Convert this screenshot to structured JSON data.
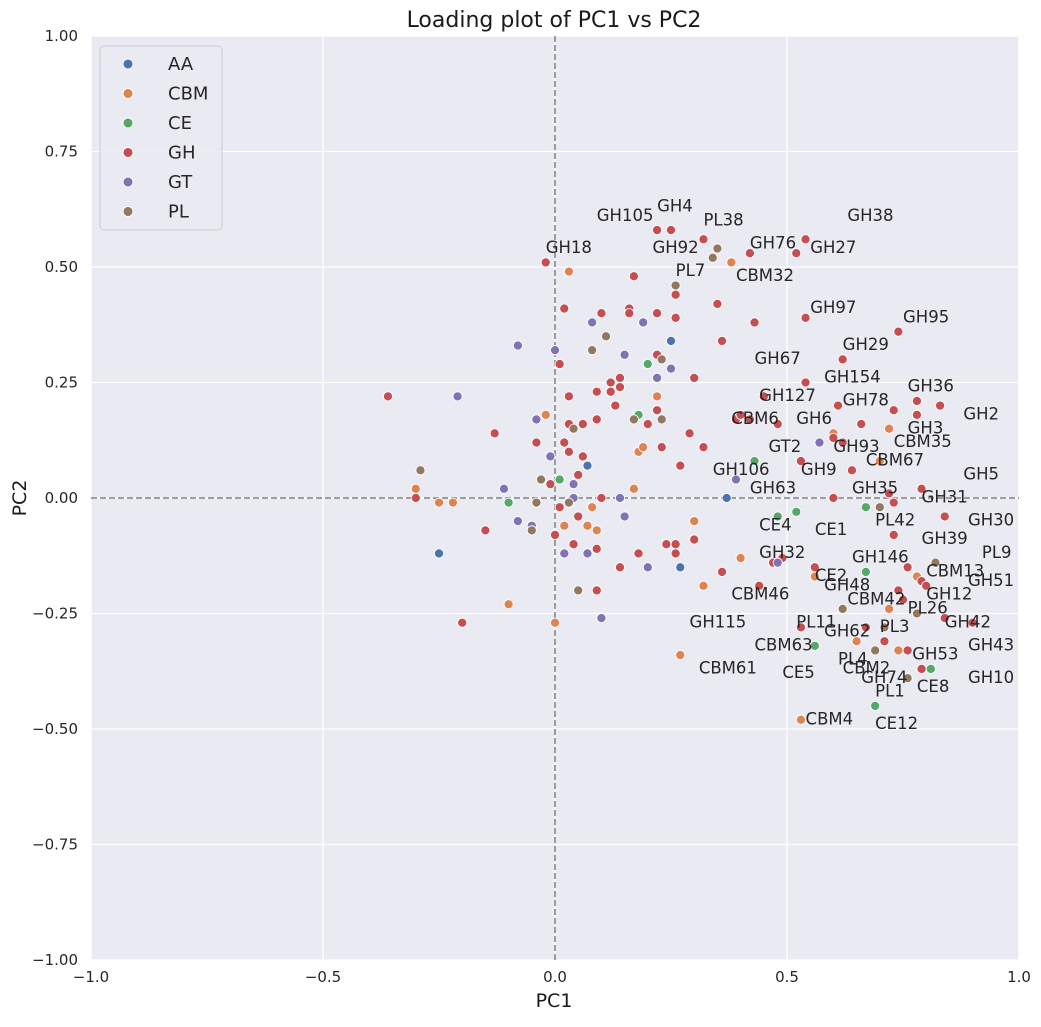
{
  "chart_data": {
    "type": "scatter",
    "title": "Loading plot of PC1 vs PC2",
    "xlabel": "PC1",
    "ylabel": "PC2",
    "xlim": [
      -1.0,
      1.0
    ],
    "ylim": [
      -1.0,
      1.0
    ],
    "grid": true,
    "legend_position": "top-left",
    "background": "#eaeaf2",
    "x_ticks": [
      "−1.0",
      "−0.5",
      "0.0",
      "0.5",
      "1.0"
    ],
    "x_tick_values": [
      -1.0,
      -0.5,
      0.0,
      0.5,
      1.0
    ],
    "y_ticks": [
      "−1.00",
      "−0.75",
      "−0.50",
      "−0.25",
      "0.00",
      "0.25",
      "0.50",
      "0.75",
      "1.00"
    ],
    "y_tick_values": [
      -1.0,
      -0.75,
      -0.5,
      -0.25,
      0.0,
      0.25,
      0.5,
      0.75,
      1.0
    ],
    "reference_lines": {
      "x": 0.0,
      "y": 0.0,
      "color": "#808080",
      "style": "dashed"
    },
    "series": [
      {
        "name": "AA",
        "color": "#4c72b0",
        "points": [
          [
            0.07,
            0.07
          ],
          [
            0.25,
            0.34
          ],
          [
            0.37,
            0.0
          ],
          [
            0.27,
            -0.15
          ],
          [
            -0.25,
            -0.12
          ]
        ]
      },
      {
        "name": "CBM",
        "color": "#dd8452",
        "points": [
          [
            0.03,
            0.49
          ],
          [
            0.38,
            0.51
          ],
          [
            0.08,
            -0.02
          ],
          [
            0.02,
            -0.06
          ],
          [
            0.07,
            -0.06
          ],
          [
            0.09,
            -0.07
          ],
          [
            0.0,
            -0.27
          ],
          [
            0.27,
            -0.34
          ],
          [
            0.53,
            -0.48
          ],
          [
            0.7,
            0.08
          ],
          [
            0.72,
            0.15
          ],
          [
            0.6,
            0.14
          ],
          [
            0.78,
            -0.17
          ],
          [
            0.72,
            -0.24
          ],
          [
            0.65,
            -0.31
          ],
          [
            0.74,
            -0.33
          ],
          [
            0.56,
            -0.17
          ],
          [
            0.44,
            -0.19
          ],
          [
            0.32,
            -0.19
          ],
          [
            0.4,
            -0.13
          ],
          [
            0.3,
            -0.05
          ],
          [
            -0.1,
            -0.23
          ],
          [
            -0.22,
            -0.01
          ],
          [
            -0.25,
            -0.01
          ],
          [
            -0.3,
            0.02
          ],
          [
            0.18,
            0.1
          ],
          [
            0.19,
            0.11
          ],
          [
            0.22,
            0.22
          ],
          [
            0.17,
            0.02
          ],
          [
            -0.02,
            0.18
          ]
        ]
      },
      {
        "name": "CE",
        "color": "#55a868",
        "points": [
          [
            0.2,
            0.29
          ],
          [
            0.18,
            0.18
          ],
          [
            0.01,
            0.04
          ],
          [
            -0.1,
            -0.01
          ],
          [
            0.43,
            0.08
          ],
          [
            0.48,
            -0.04
          ],
          [
            0.52,
            -0.03
          ],
          [
            0.67,
            -0.02
          ],
          [
            0.67,
            -0.16
          ],
          [
            0.56,
            -0.32
          ],
          [
            0.81,
            -0.37
          ],
          [
            0.69,
            -0.45
          ]
        ]
      },
      {
        "name": "GH",
        "color": "#c44e52",
        "points": [
          [
            0.22,
            0.58
          ],
          [
            0.25,
            0.58
          ],
          [
            0.42,
            0.53
          ],
          [
            0.52,
            0.53
          ],
          [
            0.54,
            0.56
          ],
          [
            -0.02,
            0.51
          ],
          [
            0.17,
            0.48
          ],
          [
            0.26,
            0.44
          ],
          [
            0.32,
            0.56
          ],
          [
            0.35,
            0.42
          ],
          [
            0.22,
            0.4
          ],
          [
            0.1,
            0.4
          ],
          [
            0.16,
            0.41
          ],
          [
            0.02,
            0.41
          ],
          [
            0.26,
            0.39
          ],
          [
            0.43,
            0.38
          ],
          [
            0.54,
            0.39
          ],
          [
            0.74,
            0.36
          ],
          [
            0.62,
            0.3
          ],
          [
            0.36,
            0.34
          ],
          [
            0.22,
            0.31
          ],
          [
            0.3,
            0.26
          ],
          [
            0.54,
            0.25
          ],
          [
            0.45,
            0.22
          ],
          [
            0.61,
            0.2
          ],
          [
            0.73,
            0.19
          ],
          [
            0.78,
            0.21
          ],
          [
            0.83,
            0.2
          ],
          [
            0.78,
            0.18
          ],
          [
            0.39,
            0.17
          ],
          [
            0.4,
            0.18
          ],
          [
            0.42,
            0.17
          ],
          [
            0.48,
            0.16
          ],
          [
            0.6,
            0.13
          ],
          [
            0.62,
            0.12
          ],
          [
            0.66,
            0.16
          ],
          [
            0.53,
            0.08
          ],
          [
            0.64,
            0.06
          ],
          [
            0.6,
            0.0
          ],
          [
            0.72,
            0.01
          ],
          [
            0.73,
            -0.01
          ],
          [
            0.79,
            0.02
          ],
          [
            0.84,
            -0.04
          ],
          [
            0.73,
            -0.08
          ],
          [
            0.76,
            -0.15
          ],
          [
            0.79,
            -0.18
          ],
          [
            0.8,
            -0.19
          ],
          [
            0.74,
            -0.2
          ],
          [
            0.75,
            -0.22
          ],
          [
            0.84,
            -0.26
          ],
          [
            0.9,
            -0.27
          ],
          [
            0.76,
            -0.33
          ],
          [
            0.71,
            -0.31
          ],
          [
            0.67,
            -0.28
          ],
          [
            0.79,
            -0.37
          ],
          [
            0.53,
            -0.28
          ],
          [
            0.56,
            -0.15
          ],
          [
            0.49,
            -0.13
          ],
          [
            0.47,
            -0.14
          ],
          [
            0.44,
            -0.19
          ],
          [
            0.36,
            -0.16
          ],
          [
            0.26,
            -0.12
          ],
          [
            0.26,
            -0.1
          ],
          [
            0.3,
            -0.09
          ],
          [
            0.27,
            0.07
          ],
          [
            0.32,
            0.11
          ],
          [
            0.29,
            0.14
          ],
          [
            0.2,
            0.16
          ],
          [
            0.23,
            0.11
          ],
          [
            0.22,
            0.19
          ],
          [
            0.14,
            0.24
          ],
          [
            0.12,
            0.25
          ],
          [
            0.14,
            0.26
          ],
          [
            0.09,
            0.23
          ],
          [
            0.09,
            0.17
          ],
          [
            0.03,
            0.22
          ],
          [
            0.02,
            0.12
          ],
          [
            0.03,
            0.1
          ],
          [
            0.06,
            0.09
          ],
          [
            0.06,
            0.16
          ],
          [
            0.03,
            0.16
          ],
          [
            0.01,
            0.29
          ],
          [
            -0.01,
            0.03
          ],
          [
            0.01,
            -0.02
          ],
          [
            0.05,
            -0.04
          ],
          [
            0.05,
            0.05
          ],
          [
            0.1,
            0.0
          ],
          [
            0.0,
            -0.08
          ],
          [
            0.04,
            -0.1
          ],
          [
            0.09,
            -0.2
          ],
          [
            0.09,
            -0.11
          ],
          [
            0.14,
            -0.15
          ],
          [
            0.18,
            -0.12
          ],
          [
            0.2,
            -0.15
          ],
          [
            0.24,
            -0.1
          ],
          [
            -0.04,
            0.12
          ],
          [
            -0.13,
            0.14
          ],
          [
            -0.15,
            -0.07
          ],
          [
            -0.2,
            -0.27
          ],
          [
            -0.3,
            0.0
          ],
          [
            -0.36,
            0.22
          ],
          [
            0.16,
            0.4
          ],
          [
            0.13,
            0.2
          ],
          [
            0.12,
            0.23
          ]
        ]
      },
      {
        "name": "GT",
        "color": "#8172b3",
        "points": [
          [
            -0.08,
            0.33
          ],
          [
            -0.21,
            0.22
          ],
          [
            0.0,
            0.32
          ],
          [
            0.08,
            0.38
          ],
          [
            0.15,
            0.31
          ],
          [
            0.19,
            0.38
          ],
          [
            0.22,
            0.26
          ],
          [
            0.25,
            0.28
          ],
          [
            -0.04,
            0.17
          ],
          [
            -0.01,
            0.09
          ],
          [
            0.04,
            0.03
          ],
          [
            0.04,
            0.0
          ],
          [
            0.14,
            0.0
          ],
          [
            0.15,
            -0.04
          ],
          [
            -0.11,
            0.02
          ],
          [
            -0.08,
            -0.05
          ],
          [
            -0.05,
            -0.06
          ],
          [
            0.02,
            -0.12
          ],
          [
            0.07,
            -0.12
          ],
          [
            0.2,
            -0.15
          ],
          [
            0.1,
            -0.26
          ],
          [
            0.39,
            0.04
          ],
          [
            0.57,
            0.12
          ],
          [
            0.48,
            -0.14
          ]
        ]
      },
      {
        "name": "PL",
        "color": "#937860",
        "points": [
          [
            0.35,
            0.54
          ],
          [
            0.34,
            0.52
          ],
          [
            0.26,
            0.46
          ],
          [
            0.08,
            0.32
          ],
          [
            0.11,
            0.35
          ],
          [
            0.23,
            0.3
          ],
          [
            0.17,
            0.17
          ],
          [
            0.23,
            0.17
          ],
          [
            0.04,
            0.15
          ],
          [
            0.03,
            -0.01
          ],
          [
            -0.04,
            -0.01
          ],
          [
            -0.05,
            -0.07
          ],
          [
            -0.29,
            0.06
          ],
          [
            0.05,
            -0.2
          ],
          [
            0.7,
            -0.02
          ],
          [
            0.62,
            -0.24
          ],
          [
            0.71,
            -0.28
          ],
          [
            0.69,
            -0.33
          ],
          [
            0.76,
            -0.39
          ],
          [
            0.78,
            -0.25
          ],
          [
            0.82,
            -0.14
          ],
          [
            -0.03,
            0.04
          ]
        ]
      }
    ],
    "point_labels": [
      {
        "text": "GH4",
        "x": 0.22,
        "y": 0.62
      },
      {
        "text": "GH105",
        "x": 0.09,
        "y": 0.6
      },
      {
        "text": "PL38",
        "x": 0.32,
        "y": 0.59
      },
      {
        "text": "GH38",
        "x": 0.63,
        "y": 0.6
      },
      {
        "text": "GH92",
        "x": 0.21,
        "y": 0.53
      },
      {
        "text": "GH76",
        "x": 0.42,
        "y": 0.54
      },
      {
        "text": "GH27",
        "x": 0.55,
        "y": 0.53
      },
      {
        "text": "GH18",
        "x": -0.02,
        "y": 0.53
      },
      {
        "text": "PL7",
        "x": 0.26,
        "y": 0.48
      },
      {
        "text": "CBM32",
        "x": 0.39,
        "y": 0.47
      },
      {
        "text": "GH97",
        "x": 0.55,
        "y": 0.4
      },
      {
        "text": "GH95",
        "x": 0.75,
        "y": 0.38
      },
      {
        "text": "GH29",
        "x": 0.62,
        "y": 0.32
      },
      {
        "text": "GH67",
        "x": 0.43,
        "y": 0.29
      },
      {
        "text": "GH154",
        "x": 0.58,
        "y": 0.25
      },
      {
        "text": "GH36",
        "x": 0.76,
        "y": 0.23
      },
      {
        "text": "GH127",
        "x": 0.44,
        "y": 0.21
      },
      {
        "text": "GH78",
        "x": 0.62,
        "y": 0.2
      },
      {
        "text": "GH2",
        "x": 0.88,
        "y": 0.17
      },
      {
        "text": "CBM6",
        "x": 0.38,
        "y": 0.16
      },
      {
        "text": "GH6",
        "x": 0.52,
        "y": 0.16
      },
      {
        "text": "GH3",
        "x": 0.76,
        "y": 0.14
      },
      {
        "text": "GT2",
        "x": 0.46,
        "y": 0.1
      },
      {
        "text": "GH93",
        "x": 0.6,
        "y": 0.1
      },
      {
        "text": "CBM35",
        "x": 0.73,
        "y": 0.11
      },
      {
        "text": "CBM67",
        "x": 0.67,
        "y": 0.07
      },
      {
        "text": "GH106",
        "x": 0.34,
        "y": 0.05
      },
      {
        "text": "GH9",
        "x": 0.53,
        "y": 0.05
      },
      {
        "text": "GH5",
        "x": 0.88,
        "y": 0.04
      },
      {
        "text": "GH63",
        "x": 0.42,
        "y": 0.01
      },
      {
        "text": "GH35",
        "x": 0.64,
        "y": 0.01
      },
      {
        "text": "GH31",
        "x": 0.79,
        "y": -0.01
      },
      {
        "text": "CE4",
        "x": 0.44,
        "y": -0.07
      },
      {
        "text": "CE1",
        "x": 0.56,
        "y": -0.08
      },
      {
        "text": "PL42",
        "x": 0.69,
        "y": -0.06
      },
      {
        "text": "GH30",
        "x": 0.89,
        "y": -0.06
      },
      {
        "text": "GH39",
        "x": 0.79,
        "y": -0.1
      },
      {
        "text": "GH32",
        "x": 0.44,
        "y": -0.13
      },
      {
        "text": "GH146",
        "x": 0.64,
        "y": -0.14
      },
      {
        "text": "PL9",
        "x": 0.92,
        "y": -0.13
      },
      {
        "text": "CE2",
        "x": 0.56,
        "y": -0.18
      },
      {
        "text": "CBM13",
        "x": 0.8,
        "y": -0.17
      },
      {
        "text": "GH48",
        "x": 0.58,
        "y": -0.2
      },
      {
        "text": "CBM46",
        "x": 0.38,
        "y": -0.22
      },
      {
        "text": "CBM42",
        "x": 0.63,
        "y": -0.23
      },
      {
        "text": "GH12",
        "x": 0.8,
        "y": -0.22
      },
      {
        "text": "GH51",
        "x": 0.89,
        "y": -0.19
      },
      {
        "text": "PL26",
        "x": 0.76,
        "y": -0.25
      },
      {
        "text": "GH115",
        "x": 0.29,
        "y": -0.28
      },
      {
        "text": "PL11",
        "x": 0.52,
        "y": -0.28
      },
      {
        "text": "GH62",
        "x": 0.58,
        "y": -0.3
      },
      {
        "text": "PL3",
        "x": 0.7,
        "y": -0.29
      },
      {
        "text": "GH42",
        "x": 0.84,
        "y": -0.28
      },
      {
        "text": "CBM63",
        "x": 0.43,
        "y": -0.33
      },
      {
        "text": "GH53",
        "x": 0.77,
        "y": -0.35
      },
      {
        "text": "GH43",
        "x": 0.89,
        "y": -0.33
      },
      {
        "text": "PL4",
        "x": 0.61,
        "y": -0.36
      },
      {
        "text": "CBM2",
        "x": 0.62,
        "y": -0.38
      },
      {
        "text": "GH10",
        "x": 0.89,
        "y": -0.4
      },
      {
        "text": "CBM61",
        "x": 0.31,
        "y": -0.38
      },
      {
        "text": "CE5",
        "x": 0.49,
        "y": -0.39
      },
      {
        "text": "GH74",
        "x": 0.66,
        "y": -0.4
      },
      {
        "text": "CE8",
        "x": 0.78,
        "y": -0.42
      },
      {
        "text": "PL1",
        "x": 0.69,
        "y": -0.43
      },
      {
        "text": "CBM4",
        "x": 0.54,
        "y": -0.49
      },
      {
        "text": "CE12",
        "x": 0.69,
        "y": -0.5
      }
    ]
  }
}
